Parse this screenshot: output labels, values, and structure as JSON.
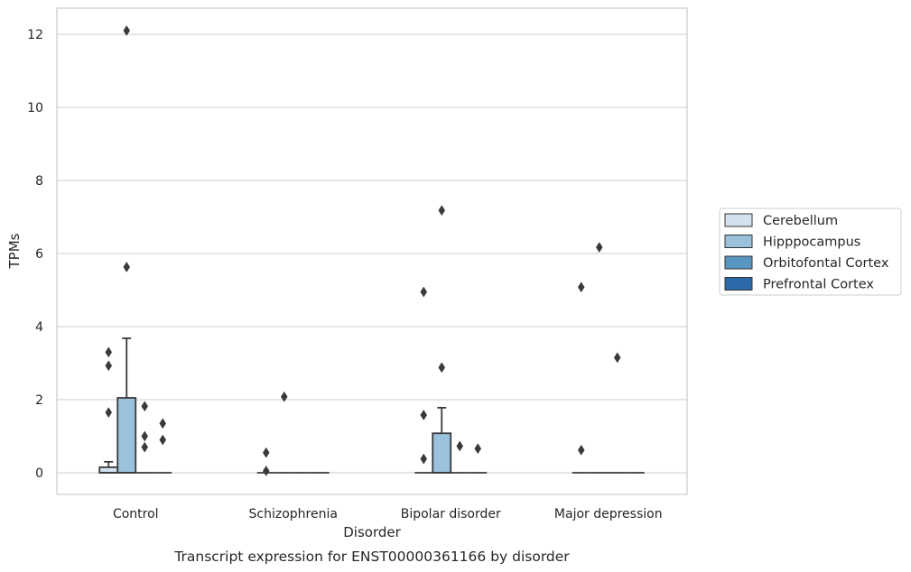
{
  "chart_data": {
    "type": "box",
    "caption": "Transcript expression for ENST00000361166 by disorder",
    "xlabel": "Disorder",
    "ylabel": "TPMs",
    "ylim": [
      -0.6,
      12.7
    ],
    "yticks": [
      0,
      2,
      4,
      6,
      8,
      10,
      12
    ],
    "grid": "horizontal",
    "legend_position": "right",
    "categories": [
      "Control",
      "Schizophrenia",
      "Bipolar disorder",
      "Major depression"
    ],
    "series": [
      {
        "name": "Cerebellum",
        "color": "#d3e1ef",
        "boxes": [
          {
            "q1": 0,
            "median": 0,
            "q3": 0.15,
            "whisker_low": 0,
            "whisker_high": 0.3,
            "outliers": [
              1.65,
              2.93,
              3.3
            ]
          },
          {
            "q1": 0,
            "median": 0,
            "q3": 0,
            "whisker_low": 0,
            "whisker_high": 0,
            "outliers": [
              0.05,
              0.55
            ]
          },
          {
            "q1": 0,
            "median": 0,
            "q3": 0,
            "whisker_low": 0,
            "whisker_high": 0,
            "outliers": [
              0.38,
              1.58,
              4.95
            ]
          },
          {
            "q1": 0,
            "median": 0,
            "q3": 0,
            "whisker_low": 0,
            "whisker_high": 0,
            "outliers": [
              0.62,
              5.08
            ]
          }
        ]
      },
      {
        "name": "Hipppocampus",
        "color": "#9bc2dc",
        "boxes": [
          {
            "q1": 0,
            "median": 0,
            "q3": 2.05,
            "whisker_low": 0,
            "whisker_high": 3.68,
            "outliers": [
              5.63,
              12.1
            ]
          },
          {
            "q1": 0,
            "median": 0,
            "q3": 0,
            "whisker_low": 0,
            "whisker_high": 0,
            "outliers": [
              2.08
            ]
          },
          {
            "q1": 0,
            "median": 0,
            "q3": 1.08,
            "whisker_low": 0,
            "whisker_high": 1.78,
            "outliers": [
              2.88,
              7.18
            ]
          },
          {
            "q1": 0,
            "median": 0,
            "q3": 0,
            "whisker_low": 0,
            "whisker_high": 0,
            "outliers": [
              6.17
            ]
          }
        ]
      },
      {
        "name": "Orbitofontal Cortex",
        "color": "#5896c1",
        "boxes": [
          {
            "q1": 0,
            "median": 0,
            "q3": 0,
            "whisker_low": 0,
            "whisker_high": 0,
            "outliers": [
              0.7,
              1.0,
              1.82
            ]
          },
          {
            "q1": 0,
            "median": 0,
            "q3": 0,
            "whisker_low": 0,
            "whisker_high": 0,
            "outliers": []
          },
          {
            "q1": 0,
            "median": 0,
            "q3": 0,
            "whisker_low": 0,
            "whisker_high": 0,
            "outliers": [
              0.73
            ]
          },
          {
            "q1": 0,
            "median": 0,
            "q3": 0,
            "whisker_low": 0,
            "whisker_high": 0,
            "outliers": [
              3.15
            ]
          }
        ]
      },
      {
        "name": "Prefrontal Cortex",
        "color": "#2b6aa8",
        "boxes": [
          {
            "q1": 0,
            "median": 0,
            "q3": 0,
            "whisker_low": 0,
            "whisker_high": 0,
            "outliers": [
              0.9,
              1.35
            ]
          },
          {
            "q1": 0,
            "median": 0,
            "q3": 0,
            "whisker_low": 0,
            "whisker_high": 0,
            "outliers": []
          },
          {
            "q1": 0,
            "median": 0,
            "q3": 0,
            "whisker_low": 0,
            "whisker_high": 0,
            "outliers": [
              0.66
            ]
          },
          {
            "q1": 0,
            "median": 0,
            "q3": 0,
            "whisker_low": 0,
            "whisker_high": 0,
            "outliers": []
          }
        ]
      }
    ]
  }
}
